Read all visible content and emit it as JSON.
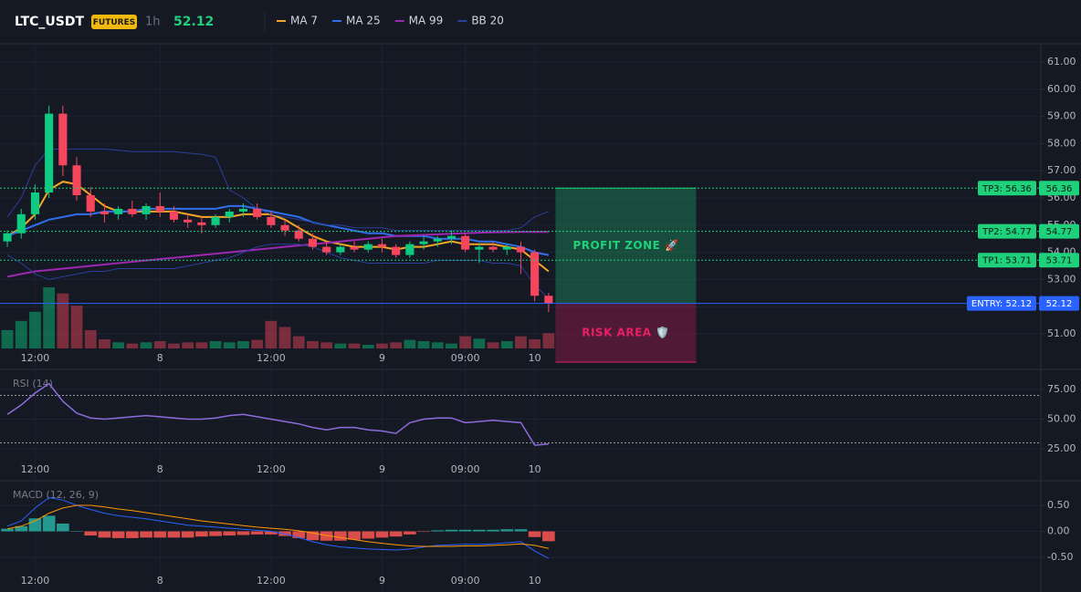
{
  "header": {
    "symbol": "LTC_USDT",
    "badge": "FUTURES",
    "interval": "1h",
    "price": 52.12
  },
  "chart_data": [
    {
      "type": "candlestick",
      "xlim": [
        -0.53,
        74.47
      ],
      "xticks": [
        {
          "value": 2,
          "label": "12:00"
        },
        {
          "value": 11,
          "label": "8"
        },
        {
          "value": 19,
          "label": "12:00"
        },
        {
          "value": 27,
          "label": "9"
        },
        {
          "value": 33,
          "label": "09:00"
        },
        {
          "value": 38,
          "label": "10"
        }
      ],
      "ylim": [
        49.691,
        61.671
      ],
      "yticks": [
        {
          "value": 51,
          "label": "51.00"
        },
        {
          "value": 52,
          "label": "52.00"
        },
        {
          "value": 53,
          "label": "53.00"
        },
        {
          "value": 54,
          "label": "54.00"
        },
        {
          "value": 55,
          "label": "55.00"
        },
        {
          "value": 56,
          "label": "56.00"
        },
        {
          "value": 57,
          "label": "57.00"
        },
        {
          "value": 58,
          "label": "58.00"
        },
        {
          "value": 59,
          "label": "59.00"
        },
        {
          "value": 60,
          "label": "60.00"
        },
        {
          "value": 61,
          "label": "61.00"
        }
      ],
      "grid": true,
      "up_color": "#0ecb81",
      "down_color": "#f6465d",
      "candles": {
        "open": [
          54.4,
          54.7,
          55.4,
          56.2,
          59.1,
          57.2,
          56.1,
          55.5,
          55.4,
          55.6,
          55.4,
          55.7,
          55.5,
          55.2,
          55.1,
          55.0,
          55.3,
          55.5,
          55.6,
          55.3,
          55.0,
          54.8,
          54.5,
          54.2,
          54.0,
          54.2,
          54.1,
          54.3,
          54.2,
          53.9,
          54.3,
          54.4,
          54.5,
          54.6,
          54.1,
          54.2,
          54.1,
          54.2,
          54.0,
          52.4
        ],
        "high": [
          54.8,
          55.6,
          56.5,
          59.4,
          59.4,
          57.5,
          56.4,
          55.8,
          55.7,
          55.9,
          55.8,
          56.2,
          55.7,
          55.4,
          55.3,
          55.4,
          55.6,
          55.8,
          55.8,
          55.5,
          55.2,
          55.0,
          54.7,
          54.4,
          54.3,
          54.4,
          54.4,
          54.5,
          54.3,
          54.4,
          54.6,
          54.6,
          54.8,
          54.7,
          54.3,
          54.4,
          54.3,
          54.4,
          54.1,
          52.5
        ],
        "low": [
          54.2,
          54.5,
          55.2,
          56.0,
          56.8,
          55.9,
          55.3,
          55.1,
          55.2,
          55.3,
          55.2,
          55.3,
          55.1,
          54.9,
          54.7,
          54.9,
          55.1,
          55.3,
          55.2,
          54.9,
          54.6,
          54.4,
          54.1,
          53.9,
          53.9,
          54.0,
          54.0,
          54.0,
          53.8,
          53.8,
          54.1,
          54.2,
          54.3,
          54.0,
          53.6,
          54.0,
          53.9,
          53.2,
          52.2,
          51.8
        ],
        "close": [
          54.7,
          55.4,
          56.2,
          59.1,
          57.2,
          56.1,
          55.5,
          55.4,
          55.6,
          55.4,
          55.7,
          55.5,
          55.2,
          55.1,
          55.0,
          55.3,
          55.5,
          55.6,
          55.3,
          55.0,
          54.8,
          54.5,
          54.2,
          54.0,
          54.2,
          54.1,
          54.3,
          54.2,
          53.9,
          54.3,
          54.4,
          54.5,
          54.6,
          54.1,
          54.2,
          54.1,
          54.2,
          54.0,
          52.4,
          52.12
        ]
      },
      "volume": [
        30,
        45,
        60,
        100,
        90,
        70,
        30,
        15,
        10,
        8,
        10,
        12,
        8,
        10,
        10,
        12,
        10,
        12,
        14,
        45,
        35,
        20,
        12,
        10,
        8,
        8,
        6,
        8,
        10,
        14,
        12,
        10,
        8,
        20,
        16,
        10,
        12,
        20,
        15,
        25
      ],
      "series": [
        {
          "name": "MA 7",
          "color": "#f5a623",
          "values": [
            54.6,
            54.9,
            55.4,
            56.3,
            56.6,
            56.5,
            56.1,
            55.7,
            55.5,
            55.5,
            55.5,
            55.5,
            55.5,
            55.4,
            55.3,
            55.3,
            55.3,
            55.4,
            55.4,
            55.4,
            55.2,
            54.9,
            54.6,
            54.4,
            54.3,
            54.2,
            54.2,
            54.2,
            54.1,
            54.2,
            54.2,
            54.3,
            54.4,
            54.3,
            54.3,
            54.3,
            54.2,
            54.1,
            53.7,
            53.3
          ]
        },
        {
          "name": "MA 25",
          "color": "#2f6fed",
          "values": [
            54.6,
            54.8,
            55.0,
            55.2,
            55.3,
            55.4,
            55.4,
            55.5,
            55.5,
            55.5,
            55.6,
            55.6,
            55.6,
            55.6,
            55.6,
            55.6,
            55.7,
            55.7,
            55.6,
            55.5,
            55.4,
            55.3,
            55.1,
            55.0,
            54.9,
            54.8,
            54.7,
            54.7,
            54.6,
            54.6,
            54.6,
            54.5,
            54.5,
            54.5,
            54.4,
            54.4,
            54.3,
            54.2,
            54.0,
            53.9
          ]
        },
        {
          "name": "MA 99",
          "color": "#9c27b0",
          "values": [
            53.1,
            53.2,
            53.3,
            53.35,
            53.4,
            53.45,
            53.5,
            53.55,
            53.6,
            53.65,
            53.7,
            53.75,
            53.8,
            53.85,
            53.9,
            53.95,
            54.0,
            54.05,
            54.1,
            54.15,
            54.2,
            54.25,
            54.3,
            54.35,
            54.4,
            54.45,
            54.5,
            54.55,
            54.6,
            54.62,
            54.64,
            54.66,
            54.68,
            54.7,
            54.72,
            54.73,
            54.74,
            54.75,
            54.75,
            54.75
          ]
        },
        {
          "name": "BB 20",
          "color": "#2a3f9a",
          "values": [
            55.3,
            56.0,
            57.2,
            57.8,
            57.8,
            57.8,
            57.8,
            57.8,
            57.75,
            57.7,
            57.7,
            57.7,
            57.7,
            57.65,
            57.6,
            57.5,
            56.3,
            56.0,
            55.6,
            55.4,
            55.3,
            55.2,
            55.1,
            55.0,
            55.0,
            54.9,
            54.9,
            54.9,
            54.8,
            54.8,
            54.8,
            54.8,
            54.8,
            54.8,
            54.8,
            54.8,
            54.8,
            54.9,
            55.3,
            55.5
          ],
          "lower": [
            53.9,
            53.6,
            53.2,
            53.0,
            53.1,
            53.2,
            53.3,
            53.3,
            53.4,
            53.4,
            53.4,
            53.4,
            53.4,
            53.5,
            53.6,
            53.7,
            53.8,
            54.0,
            54.2,
            54.3,
            54.3,
            54.3,
            54.2,
            54.0,
            53.8,
            53.7,
            53.6,
            53.6,
            53.6,
            53.6,
            53.6,
            53.7,
            53.7,
            53.7,
            53.7,
            53.6,
            53.6,
            53.5,
            52.8,
            52.3
          ]
        }
      ],
      "levels": [
        {
          "label": "TP3: 56.36",
          "value": 56.36,
          "color": "#1fd17a"
        },
        {
          "label": "TP2: 54.77",
          "value": 54.77,
          "color": "#1fd17a"
        },
        {
          "label": "TP1: 53.71",
          "value": 53.71,
          "color": "#1fd17a"
        },
        {
          "label": "ENTRY: 52.12",
          "value": 52.12,
          "color": "#2962ff"
        }
      ],
      "zones": [
        {
          "label": "PROFIT ZONE 🚀",
          "top": 56.36,
          "bottom": 52.12,
          "color": "#1fd17a"
        },
        {
          "label": "RISK AREA 🛡️",
          "top": 52.12,
          "bottom": 49.96,
          "color": "#e91e63"
        }
      ]
    },
    {
      "type": "line",
      "title": "RSI (14)",
      "xlim": [
        -0.53,
        74.47
      ],
      "xticks": [
        {
          "value": 2,
          "label": "12:00"
        },
        {
          "value": 11,
          "label": "8"
        },
        {
          "value": 19,
          "label": "12:00"
        },
        {
          "value": 27,
          "label": "9"
        },
        {
          "value": 33,
          "label": "09:00"
        },
        {
          "value": 38,
          "label": "10"
        }
      ],
      "ylim": [
        -1.9,
        91.9
      ],
      "yticks": [
        {
          "value": 25,
          "label": "25.00"
        },
        {
          "value": 50,
          "label": "50.00"
        },
        {
          "value": 75,
          "label": "75.00"
        }
      ],
      "levels": [
        70,
        30
      ],
      "series": [
        {
          "color": "#8e6bdc",
          "values": [
            54,
            62,
            72,
            80,
            65,
            55,
            51,
            50,
            51,
            52,
            53,
            52,
            51,
            50,
            50,
            51,
            53,
            54,
            52,
            50,
            48,
            46,
            43,
            41,
            43,
            43,
            41,
            40,
            38,
            47,
            50,
            51,
            51,
            47,
            48,
            49,
            48,
            47,
            28,
            29
          ]
        }
      ]
    },
    {
      "type": "macd",
      "title": "MACD (12, 26, 9)",
      "xlim": [
        -0.53,
        74.47
      ],
      "xticks": [
        {
          "value": 2,
          "label": "12:00"
        },
        {
          "value": 11,
          "label": "8"
        },
        {
          "value": 19,
          "label": "12:00"
        },
        {
          "value": 27,
          "label": "9"
        },
        {
          "value": 33,
          "label": "09:00"
        },
        {
          "value": 38,
          "label": "10"
        }
      ],
      "ylim": [
        -1.167,
        0.974
      ],
      "yticks": [
        {
          "value": 0.5,
          "label": "0.50"
        },
        {
          "value": 0,
          "label": "0.00"
        },
        {
          "value": -0.5,
          "label": "-0.50"
        }
      ],
      "histogram": {
        "positive": "#26a69a",
        "negative": "#ef5350",
        "values": [
          0.05,
          0.1,
          0.25,
          0.3,
          0.15,
          0,
          -0.08,
          -0.12,
          -0.13,
          -0.13,
          -0.12,
          -0.12,
          -0.12,
          -0.12,
          -0.1,
          -0.09,
          -0.08,
          -0.07,
          -0.06,
          -0.06,
          -0.09,
          -0.13,
          -0.17,
          -0.18,
          -0.18,
          -0.16,
          -0.14,
          -0.12,
          -0.1,
          -0.06,
          -0.01,
          0.02,
          0.03,
          0.03,
          0.03,
          0.03,
          0.04,
          0.04,
          -0.11,
          -0.19
        ]
      },
      "series": [
        {
          "color": "#2962ff",
          "values": [
            0.1,
            0.2,
            0.45,
            0.65,
            0.6,
            0.5,
            0.42,
            0.35,
            0.3,
            0.27,
            0.24,
            0.2,
            0.16,
            0.12,
            0.1,
            0.08,
            0.06,
            0.04,
            0.02,
            0.0,
            -0.05,
            -0.12,
            -0.2,
            -0.26,
            -0.3,
            -0.32,
            -0.34,
            -0.35,
            -0.36,
            -0.34,
            -0.3,
            -0.27,
            -0.26,
            -0.25,
            -0.25,
            -0.24,
            -0.22,
            -0.2,
            -0.38,
            -0.52
          ]
        },
        {
          "color": "#ff9800",
          "values": [
            0.05,
            0.1,
            0.2,
            0.35,
            0.45,
            0.5,
            0.5,
            0.47,
            0.43,
            0.4,
            0.36,
            0.32,
            0.28,
            0.24,
            0.2,
            0.17,
            0.14,
            0.11,
            0.08,
            0.06,
            0.04,
            0.01,
            -0.03,
            -0.08,
            -0.12,
            -0.16,
            -0.2,
            -0.23,
            -0.26,
            -0.28,
            -0.29,
            -0.29,
            -0.29,
            -0.28,
            -0.28,
            -0.27,
            -0.26,
            -0.24,
            -0.27,
            -0.33
          ]
        }
      ]
    }
  ]
}
